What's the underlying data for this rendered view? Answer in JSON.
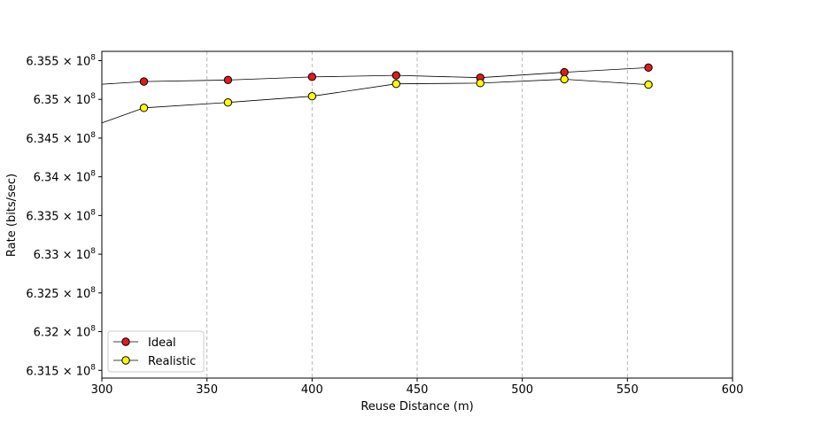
{
  "chart_data": {
    "type": "line",
    "title": "",
    "xlabel": "Reuse Distance (m)",
    "ylabel": "Rate (bits/sec)",
    "xlim": [
      300,
      600
    ],
    "ylim": [
      631400000,
      635620000
    ],
    "x_ticks": [
      {
        "value": 300,
        "label": "300"
      },
      {
        "value": 350,
        "label": "350"
      },
      {
        "value": 400,
        "label": "400"
      },
      {
        "value": 450,
        "label": "450"
      },
      {
        "value": 500,
        "label": "500"
      },
      {
        "value": 550,
        "label": "550"
      },
      {
        "value": 600,
        "label": "600"
      }
    ],
    "y_ticks": [
      {
        "value": 631500000,
        "mantissa": "6.315",
        "base": "10",
        "exponent": "8"
      },
      {
        "value": 632000000,
        "mantissa": "6.32",
        "base": "10",
        "exponent": "8"
      },
      {
        "value": 632500000,
        "mantissa": "6.325",
        "base": "10",
        "exponent": "8"
      },
      {
        "value": 633000000,
        "mantissa": "6.33",
        "base": "10",
        "exponent": "8"
      },
      {
        "value": 633500000,
        "mantissa": "6.335",
        "base": "10",
        "exponent": "8"
      },
      {
        "value": 634000000,
        "mantissa": "6.34",
        "base": "10",
        "exponent": "8"
      },
      {
        "value": 634500000,
        "mantissa": "6.345",
        "base": "10",
        "exponent": "8"
      },
      {
        "value": 635000000,
        "mantissa": "6.35",
        "base": "10",
        "exponent": "8"
      },
      {
        "value": 635500000,
        "mantissa": "6.355",
        "base": "10",
        "exponent": "8"
      }
    ],
    "grid": {
      "x": true,
      "y": false,
      "style": "dashed",
      "color": "#b0b0b0"
    },
    "legend_position": "lower-left",
    "series": [
      {
        "name": "Ideal",
        "color": "#e31a1c",
        "line_color": "#000000",
        "x": [
          280,
          320,
          360,
          400,
          440,
          480,
          520,
          560
        ],
        "y": [
          635160000,
          635230000,
          635250000,
          635290000,
          635310000,
          635280000,
          635350000,
          635410000
        ],
        "marker_x": [
          320,
          360,
          400,
          440,
          480,
          520,
          560
        ]
      },
      {
        "name": "Realistic",
        "color": "#ffff00",
        "line_color": "#000000",
        "x": [
          280,
          320,
          360,
          400,
          440,
          480,
          520,
          560
        ],
        "y": [
          634500000,
          634890000,
          634960000,
          635040000,
          635200000,
          635210000,
          635260000,
          635190000
        ],
        "marker_x": [
          320,
          360,
          400,
          440,
          480,
          520,
          560
        ]
      }
    ]
  }
}
